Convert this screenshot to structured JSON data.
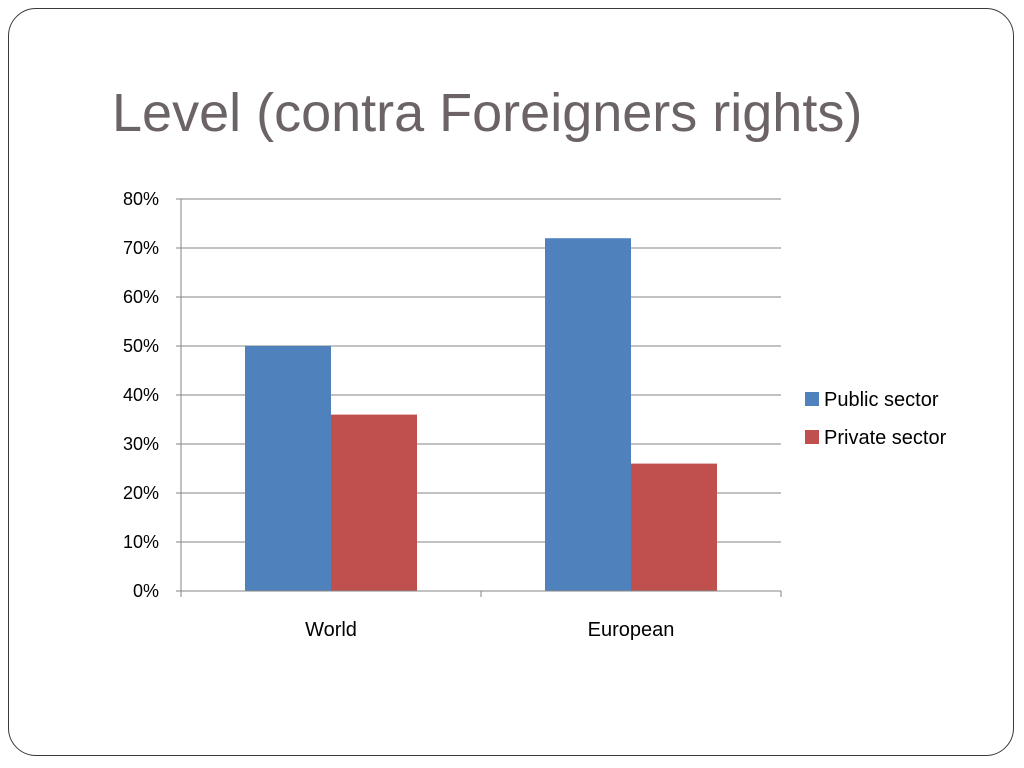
{
  "slide": {
    "title": "Level (contra Foreigners rights)"
  },
  "chart_data": {
    "type": "bar",
    "title": "",
    "xlabel": "",
    "ylabel": "",
    "categories": [
      "World",
      "European"
    ],
    "series": [
      {
        "name": "Public sector",
        "values": [
          0.5,
          0.72
        ],
        "color": "#4f81bd"
      },
      {
        "name": "Private sector",
        "values": [
          0.36,
          0.26
        ],
        "color": "#c0504d"
      }
    ],
    "ylim": [
      0,
      0.8
    ],
    "yticks": [
      0,
      0.1,
      0.2,
      0.3,
      0.4,
      0.5,
      0.6,
      0.7,
      0.8
    ],
    "ytick_labels": [
      "0%",
      "10%",
      "20%",
      "30%",
      "40%",
      "50%",
      "60%",
      "70%",
      "80%"
    ],
    "grid": true,
    "legend": "right"
  }
}
